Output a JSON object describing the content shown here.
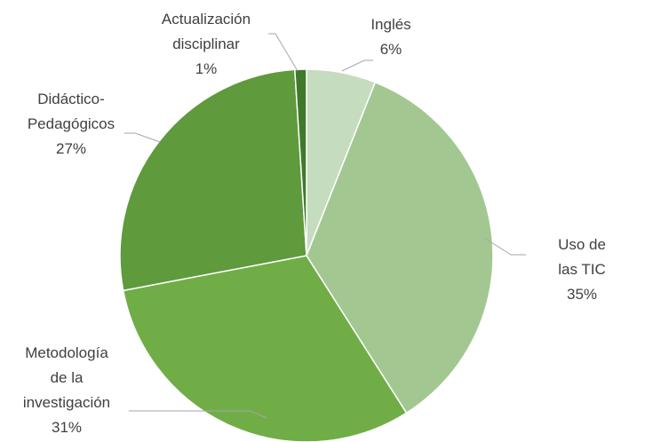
{
  "chart_data": {
    "type": "pie",
    "categories": [
      "Inglés",
      "Uso de las TIC",
      "Metodología\nde la\ninvestigación",
      "Didáctico-\nPedagógicos",
      "Actualización\ndisciplinar"
    ],
    "values": [
      6,
      35,
      31,
      27,
      1
    ],
    "value_labels": [
      "6%",
      "35%",
      "31%",
      "27%",
      "1%"
    ],
    "colors": [
      "#c5dcbe",
      "#a3c791",
      "#70ad47",
      "#5f9a3d",
      "#3f7a2b"
    ]
  }
}
